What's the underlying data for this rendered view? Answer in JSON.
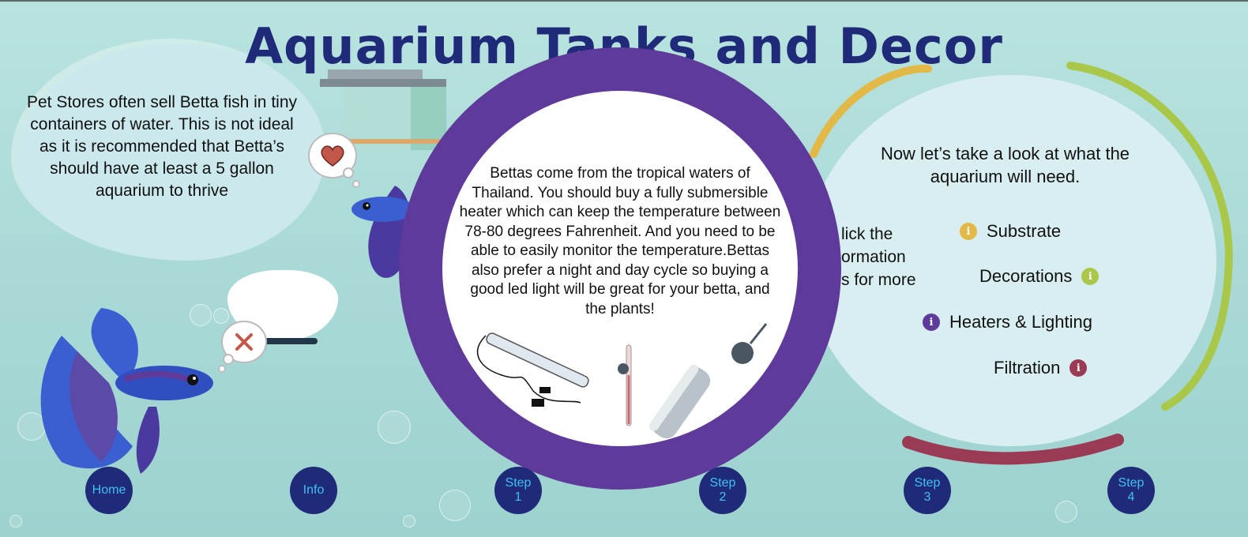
{
  "page": {
    "title": "Aquarium Tanks and Decor"
  },
  "left_panel": {
    "text": "Pet Stores often sell Betta fish in tiny containers of water. This is not ideal as it is recommended that Betta’s should have at least a 5 gallon aquarium to thrive"
  },
  "center_panel": {
    "text": "Bettas come from the tropical waters of Thailand. You should buy a fully submersible heater which can keep the temperature between 78-80 degrees Fahrenheit. And you need to be able to easily monitor the temperature.Bettas also prefer a night and day cycle so buying a good led light will be great for your betta, and the plants!"
  },
  "right_panel": {
    "intro": "Now let’s take a look at what the aquarium will need.",
    "clipped_lines": [
      "lick the",
      "ormation",
      "s for more"
    ],
    "items": [
      {
        "label": "Substrate",
        "icon": "info-icon",
        "color": "#e2b947"
      },
      {
        "label": "Decorations",
        "icon": "info-icon",
        "color": "#a9c84a"
      },
      {
        "label": "Heaters & Lighting",
        "icon": "info-icon",
        "color": "#5e3a9a"
      },
      {
        "label": "Filtration",
        "icon": "info-icon",
        "color": "#9b3a55"
      }
    ],
    "info_glyph": "i"
  },
  "nav": {
    "home": "Home",
    "info": "Info",
    "step1": [
      "Step",
      "1"
    ],
    "step2": [
      "Step",
      "2"
    ],
    "step3": [
      "Step",
      "3"
    ],
    "step4": [
      "Step",
      "4"
    ]
  },
  "colors": {
    "title": "#1f2a78",
    "ring": "#5e3a9a",
    "nav_bg": "#1f2a78",
    "nav_text": "#3fc2f1",
    "ring_yellow": "#e2b947",
    "ring_green": "#a9c84a",
    "ring_maroon": "#9b3a55"
  }
}
